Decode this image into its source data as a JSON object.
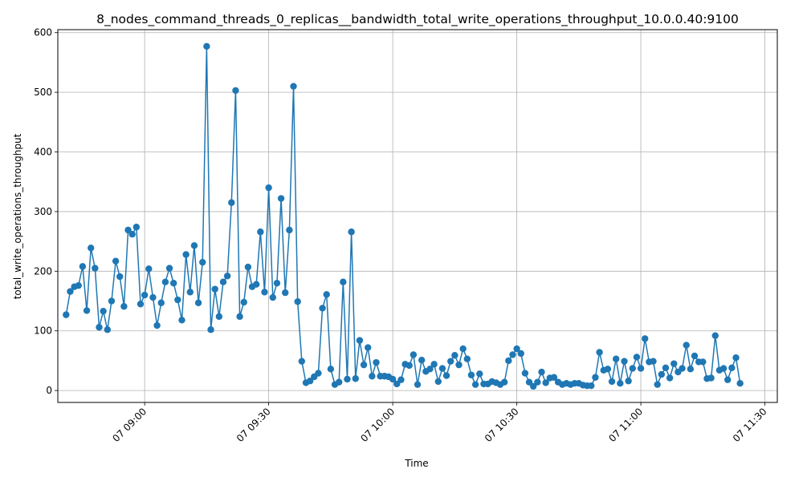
{
  "chart_data": {
    "type": "line",
    "title": "8_nodes_command_threads_0_replicas__bandwidth_total_write_operations_throughput_10.0.0.40:9100",
    "xlabel": "Time",
    "ylabel": "total_write_operations_throughput",
    "x_unit": "minutes",
    "xlim": [
      "08:39",
      "11:33"
    ],
    "ylim": [
      -20,
      605
    ],
    "grid": true,
    "colors": {
      "series": "#1f77b4"
    },
    "x_ticks": [
      {
        "value": "09:00",
        "label": "07 09:00"
      },
      {
        "value": "09:30",
        "label": "07 09:30"
      },
      {
        "value": "10:00",
        "label": "07 10:00"
      },
      {
        "value": "10:30",
        "label": "07 10:30"
      },
      {
        "value": "11:00",
        "label": "07 11:00"
      },
      {
        "value": "11:30",
        "label": "07 11:30"
      }
    ],
    "y_ticks": [
      0,
      100,
      200,
      300,
      400,
      500,
      600
    ],
    "series": [
      {
        "marker": "circle",
        "x_start": "08:41",
        "x_step_minutes": 1,
        "values": [
          127,
          166,
          174,
          176,
          208,
          134,
          239,
          205,
          106,
          133,
          102,
          150,
          217,
          191,
          141,
          269,
          262,
          274,
          145,
          160,
          204,
          156,
          109,
          147,
          182,
          205,
          180,
          152,
          118,
          228,
          165,
          243,
          147,
          215,
          577,
          102,
          170,
          124,
          182,
          192,
          315,
          503,
          124,
          148,
          207,
          174,
          178,
          266,
          165,
          340,
          156,
          180,
          322,
          164,
          269,
          510,
          149,
          49,
          13,
          16,
          23,
          29,
          138,
          161,
          36,
          10,
          14,
          182,
          19,
          266,
          20,
          84,
          43,
          72,
          24,
          47,
          24,
          24,
          23,
          19,
          11,
          18,
          44,
          42,
          60,
          10,
          51,
          32,
          36,
          44,
          15,
          37,
          25,
          49,
          59,
          43,
          70,
          53,
          26,
          10,
          28,
          11,
          11,
          15,
          13,
          10,
          14,
          50,
          60,
          70,
          62,
          29,
          14,
          7,
          14,
          31,
          13,
          21,
          22,
          14,
          10,
          12,
          10,
          12,
          12,
          9,
          8,
          8,
          22,
          64,
          34,
          36,
          15,
          53,
          12,
          49,
          16,
          37,
          56,
          37,
          87,
          48,
          49,
          10,
          27,
          38,
          21,
          45,
          31,
          37,
          76,
          36,
          58,
          48,
          48,
          20,
          21,
          92,
          34,
          37,
          18,
          38,
          55,
          12
        ]
      }
    ]
  }
}
